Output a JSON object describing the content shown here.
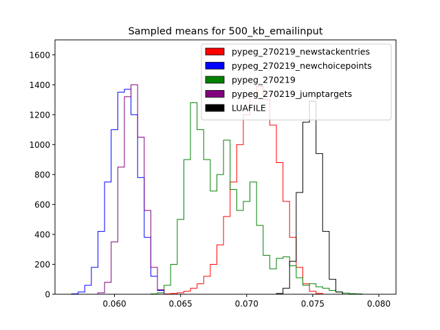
{
  "chart_data": {
    "type": "histogram",
    "title": "Sampled means for 500_kb_emailinput",
    "xlabel": "",
    "ylabel": "",
    "xlim": [
      0.0555,
      0.0813
    ],
    "ylim": [
      0,
      1700
    ],
    "xticks": [
      0.06,
      0.065,
      0.07,
      0.075,
      0.08
    ],
    "xtick_labels": [
      "0.060",
      "0.065",
      "0.070",
      "0.075",
      "0.080"
    ],
    "yticks": [
      0,
      200,
      400,
      600,
      800,
      1000,
      1200,
      1400,
      1600
    ],
    "ytick_labels": [
      "0",
      "200",
      "400",
      "600",
      "800",
      "1000",
      "1200",
      "1400",
      "1600"
    ],
    "legend_position": "top-right",
    "grid": false,
    "series": [
      {
        "name": "pypeg_270219_newstackentries",
        "color": "#ff0000",
        "x": [
          0.0635,
          0.064,
          0.0645,
          0.065,
          0.0655,
          0.066,
          0.0665,
          0.067,
          0.0675,
          0.068,
          0.0685,
          0.069,
          0.0695,
          0.07,
          0.0705,
          0.071,
          0.0715,
          0.072,
          0.0725,
          0.073,
          0.0735,
          0.074,
          0.0745,
          0.075,
          0.0755,
          0.076
        ],
        "values": [
          0,
          2,
          5,
          10,
          20,
          40,
          70,
          120,
          200,
          330,
          520,
          750,
          1000,
          1200,
          1340,
          1390,
          1300,
          1130,
          880,
          620,
          380,
          180,
          70,
          20,
          5,
          0
        ]
      },
      {
        "name": "pypeg_270219_newchoicepoints",
        "color": "#0000ff",
        "x": [
          0.0565,
          0.057,
          0.0575,
          0.058,
          0.0585,
          0.059,
          0.0595,
          0.06,
          0.0605,
          0.061,
          0.0615,
          0.062,
          0.0625,
          0.063,
          0.0635,
          0.064
        ],
        "values": [
          0,
          3,
          15,
          60,
          180,
          420,
          750,
          1100,
          1350,
          1370,
          1200,
          780,
          380,
          120,
          25,
          0
        ]
      },
      {
        "name": "pypeg_270219",
        "color": "#008000",
        "x": [
          0.0625,
          0.063,
          0.0635,
          0.064,
          0.0645,
          0.065,
          0.0655,
          0.066,
          0.0665,
          0.067,
          0.0675,
          0.068,
          0.0685,
          0.069,
          0.0695,
          0.07,
          0.0705,
          0.071,
          0.0715,
          0.072,
          0.0725,
          0.073,
          0.0735,
          0.074,
          0.0745,
          0.075,
          0.0755,
          0.076,
          0.0765,
          0.077,
          0.0775,
          0.078,
          0.0785,
          0.079
        ],
        "values": [
          0,
          2,
          10,
          60,
          200,
          500,
          900,
          1280,
          1100,
          900,
          690,
          800,
          1030,
          700,
          560,
          620,
          750,
          460,
          260,
          170,
          240,
          250,
          190,
          110,
          60,
          70,
          50,
          40,
          25,
          15,
          8,
          4,
          2,
          0
        ]
      },
      {
        "name": "pypeg_270219_jumptargets",
        "color": "#800080",
        "x": [
          0.0585,
          0.059,
          0.0595,
          0.06,
          0.0605,
          0.061,
          0.0615,
          0.062,
          0.0625,
          0.063,
          0.0635,
          0.064
        ],
        "values": [
          0,
          10,
          80,
          350,
          850,
          1320,
          1400,
          1050,
          560,
          180,
          30,
          0
        ]
      },
      {
        "name": "LUAFILE",
        "color": "#000000",
        "x": [
          0.072,
          0.0725,
          0.073,
          0.0735,
          0.074,
          0.0745,
          0.075,
          0.0755,
          0.076,
          0.0765,
          0.077,
          0.0775
        ],
        "values": [
          0,
          5,
          40,
          220,
          680,
          1150,
          1290,
          940,
          420,
          100,
          15,
          0
        ]
      }
    ]
  }
}
